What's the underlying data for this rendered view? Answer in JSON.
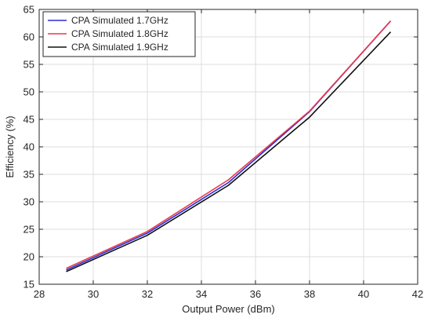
{
  "chart_data": {
    "type": "line",
    "xlabel": "Output Power (dBm)",
    "ylabel": "Efficiency (%)",
    "xlim": [
      28,
      42
    ],
    "ylim": [
      15,
      65
    ],
    "xticks": [
      28,
      30,
      32,
      34,
      36,
      38,
      40,
      42
    ],
    "yticks": [
      15,
      20,
      25,
      30,
      35,
      40,
      45,
      50,
      55,
      60,
      65
    ],
    "grid": true,
    "legend_position": "top-left",
    "series": [
      {
        "name": "CPA Simulated 1.7GHz",
        "color": "#2b2bd6",
        "x": [
          29,
          32,
          35,
          38,
          41
        ],
        "y": [
          17.6,
          24.3,
          33.5,
          46.4,
          62.9
        ]
      },
      {
        "name": "CPA Simulated 1.8GHz",
        "color": "#e8394a",
        "x": [
          29,
          32,
          35,
          38,
          41
        ],
        "y": [
          17.9,
          24.6,
          34.0,
          46.5,
          62.9
        ]
      },
      {
        "name": "CPA Simulated 1.9GHz",
        "color": "#111111",
        "x": [
          29,
          32,
          35,
          38,
          41
        ],
        "y": [
          17.3,
          23.9,
          33.0,
          45.4,
          60.9
        ]
      }
    ]
  }
}
